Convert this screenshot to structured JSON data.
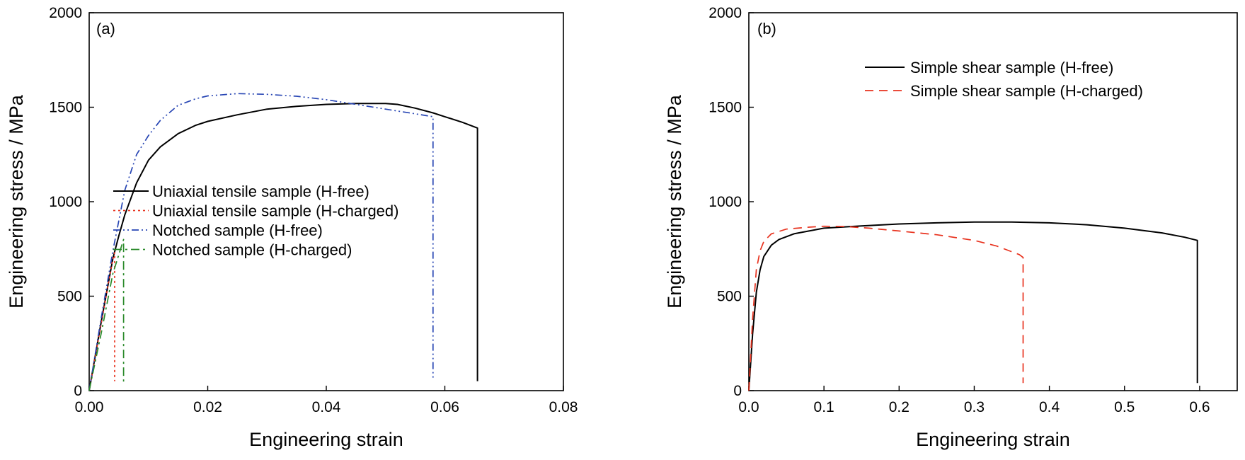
{
  "chart_data": [
    {
      "type": "line",
      "panel_label": "(a)",
      "xlabel": "Engineering strain",
      "ylabel": "Engineering stress / MPa",
      "xlim": [
        0,
        0.08
      ],
      "ylim": [
        0,
        2000
      ],
      "xticks": [
        0,
        0.02,
        0.04,
        0.06,
        0.08
      ],
      "xtick_labels": [
        "0.00",
        "0.02",
        "0.04",
        "0.06",
        "0.08"
      ],
      "yticks": [
        0,
        500,
        1000,
        1500,
        2000
      ],
      "ytick_labels": [
        "0",
        "500",
        "1000",
        "1500",
        "2000"
      ],
      "legend_position": "center",
      "series": [
        {
          "name": "Uniaxial tensile sample (H-free)",
          "color": "#000000",
          "dash": "solid",
          "points": [
            [
              0,
              0
            ],
            [
              0.002,
              360
            ],
            [
              0.004,
              700
            ],
            [
              0.005,
              820
            ],
            [
              0.006,
              930
            ],
            [
              0.008,
              1100
            ],
            [
              0.01,
              1220
            ],
            [
              0.012,
              1290
            ],
            [
              0.015,
              1360
            ],
            [
              0.018,
              1405
            ],
            [
              0.02,
              1425
            ],
            [
              0.025,
              1460
            ],
            [
              0.03,
              1490
            ],
            [
              0.035,
              1505
            ],
            [
              0.04,
              1515
            ],
            [
              0.045,
              1520
            ],
            [
              0.05,
              1520
            ],
            [
              0.052,
              1515
            ],
            [
              0.055,
              1495
            ],
            [
              0.058,
              1470
            ],
            [
              0.06,
              1450
            ],
            [
              0.063,
              1420
            ],
            [
              0.0655,
              1390
            ],
            [
              0.0655,
              50
            ]
          ]
        },
        {
          "name": "Uniaxial tensile sample (H-charged)",
          "color": "#e8321e",
          "dash": "dotted",
          "points": [
            [
              0,
              0
            ],
            [
              0.002,
              350
            ],
            [
              0.004,
              700
            ],
            [
              0.0043,
              730
            ],
            [
              0.0043,
              50
            ]
          ]
        },
        {
          "name": "Notched sample (H-free)",
          "color": "#2846b4",
          "dash": "dashdotdot",
          "points": [
            [
              0,
              0
            ],
            [
              0.002,
              380
            ],
            [
              0.004,
              740
            ],
            [
              0.006,
              1060
            ],
            [
              0.008,
              1250
            ],
            [
              0.01,
              1350
            ],
            [
              0.012,
              1430
            ],
            [
              0.015,
              1510
            ],
            [
              0.018,
              1545
            ],
            [
              0.02,
              1560
            ],
            [
              0.025,
              1572
            ],
            [
              0.03,
              1568
            ],
            [
              0.035,
              1558
            ],
            [
              0.04,
              1540
            ],
            [
              0.045,
              1515
            ],
            [
              0.05,
              1490
            ],
            [
              0.055,
              1465
            ],
            [
              0.058,
              1450
            ],
            [
              0.058,
              60
            ]
          ]
        },
        {
          "name": "Notched sample (H-charged)",
          "color": "#2a8a2a",
          "dash": "dashdot",
          "points": [
            [
              0,
              0
            ],
            [
              0.002,
              300
            ],
            [
              0.004,
              620
            ],
            [
              0.0058,
              800
            ],
            [
              0.0058,
              40
            ]
          ]
        }
      ]
    },
    {
      "type": "line",
      "panel_label": "(b)",
      "xlabel": "Engineering strain",
      "ylabel": "Engineering stress / MPa",
      "xlim": [
        0,
        0.65
      ],
      "ylim": [
        0,
        2000
      ],
      "xticks": [
        0,
        0.1,
        0.2,
        0.3,
        0.4,
        0.5,
        0.6
      ],
      "xtick_labels": [
        "0.0",
        "0.1",
        "0.2",
        "0.3",
        "0.4",
        "0.5",
        "0.6"
      ],
      "yticks": [
        0,
        500,
        1000,
        1500,
        2000
      ],
      "ytick_labels": [
        "0",
        "500",
        "1000",
        "1500",
        "2000"
      ],
      "legend_position": "top-center",
      "series": [
        {
          "name": "Simple shear sample (H-free)",
          "color": "#000000",
          "dash": "solid",
          "points": [
            [
              0,
              0
            ],
            [
              0.005,
              300
            ],
            [
              0.01,
              520
            ],
            [
              0.015,
              640
            ],
            [
              0.02,
              710
            ],
            [
              0.03,
              770
            ],
            [
              0.04,
              800
            ],
            [
              0.06,
              830
            ],
            [
              0.08,
              845
            ],
            [
              0.1,
              860
            ],
            [
              0.15,
              872
            ],
            [
              0.2,
              882
            ],
            [
              0.25,
              888
            ],
            [
              0.3,
              892
            ],
            [
              0.35,
              892
            ],
            [
              0.4,
              888
            ],
            [
              0.45,
              878
            ],
            [
              0.5,
              860
            ],
            [
              0.55,
              835
            ],
            [
              0.58,
              812
            ],
            [
              0.597,
              795
            ],
            [
              0.597,
              40
            ]
          ]
        },
        {
          "name": "Simple shear sample (H-charged)",
          "color": "#e8321e",
          "dash": "dashed",
          "points": [
            [
              0,
              0
            ],
            [
              0.005,
              380
            ],
            [
              0.01,
              640
            ],
            [
              0.015,
              740
            ],
            [
              0.02,
              790
            ],
            [
              0.03,
              830
            ],
            [
              0.05,
              855
            ],
            [
              0.08,
              865
            ],
            [
              0.1,
              870
            ],
            [
              0.13,
              868
            ],
            [
              0.16,
              860
            ],
            [
              0.2,
              845
            ],
            [
              0.25,
              825
            ],
            [
              0.3,
              795
            ],
            [
              0.33,
              765
            ],
            [
              0.36,
              720
            ],
            [
              0.365,
              705
            ],
            [
              0.365,
              40
            ]
          ]
        }
      ]
    }
  ]
}
